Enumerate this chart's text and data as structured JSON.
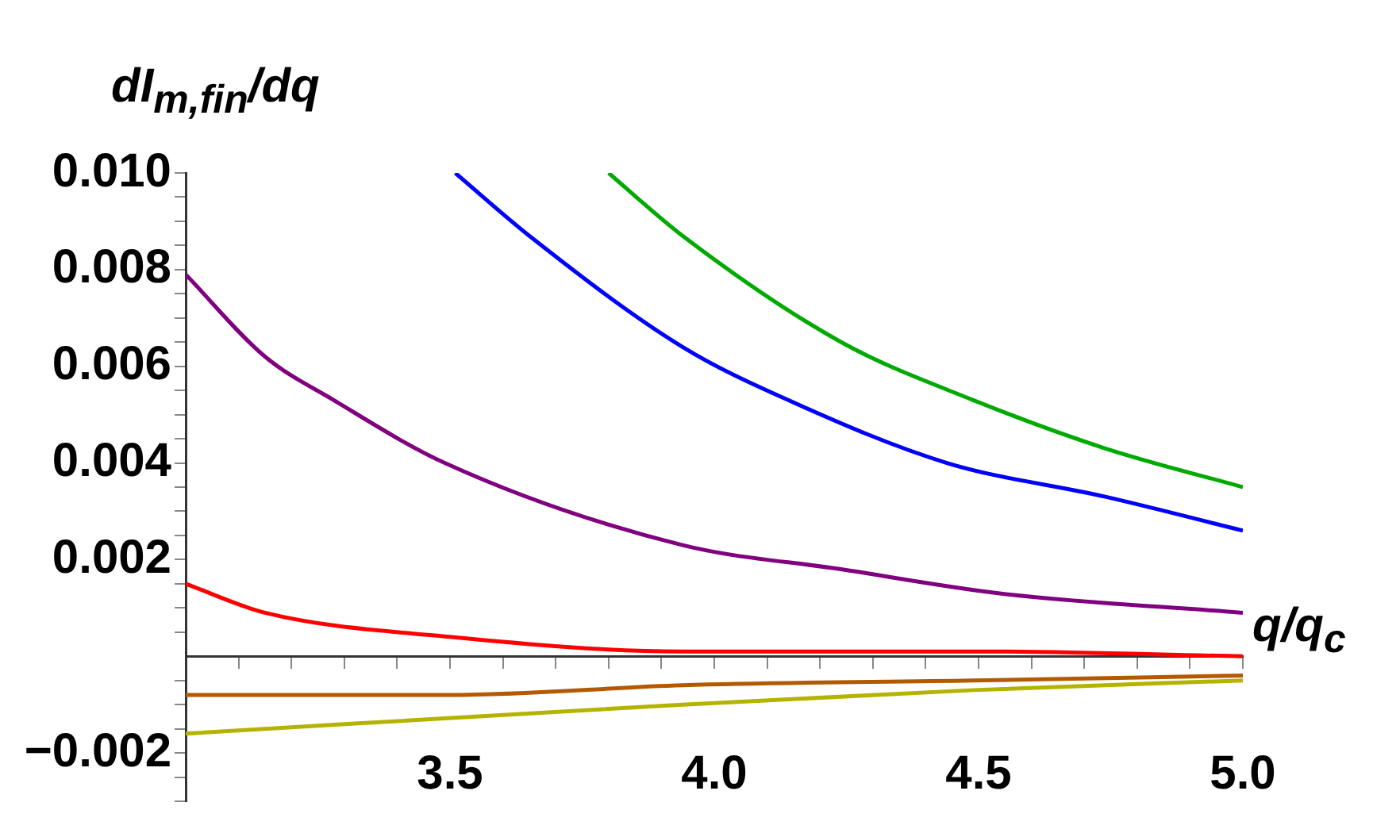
{
  "chart_data": {
    "type": "line",
    "xlabel": "q/q$_{c}$",
    "ylabel": "dI$_{m,fin}$/dq",
    "xlim": [
      3,
      5
    ],
    "ylim": [
      -0.003,
      0.01
    ],
    "xticks": [
      {
        "value": 3,
        "label": null
      },
      {
        "value": 3.1,
        "label": null
      },
      {
        "value": 3.2,
        "label": null
      },
      {
        "value": 3.3,
        "label": null
      },
      {
        "value": 3.4,
        "label": null
      },
      {
        "value": 3.5,
        "label": "3.5"
      },
      {
        "value": 3.6,
        "label": null
      },
      {
        "value": 3.7,
        "label": null
      },
      {
        "value": 3.8,
        "label": null
      },
      {
        "value": 3.9,
        "label": null
      },
      {
        "value": 4,
        "label": "4.0"
      },
      {
        "value": 4.1,
        "label": null
      },
      {
        "value": 4.2,
        "label": null
      },
      {
        "value": 4.3,
        "label": null
      },
      {
        "value": 4.4,
        "label": null
      },
      {
        "value": 4.5,
        "label": "4.5"
      },
      {
        "value": 4.6,
        "label": null
      },
      {
        "value": 4.7,
        "label": null
      },
      {
        "value": 4.8,
        "label": null
      },
      {
        "value": 4.9,
        "label": null
      },
      {
        "value": 5,
        "label": "5.0"
      }
    ],
    "yticks": [
      {
        "value": -0.003,
        "label": null
      },
      {
        "value": -0.0025,
        "label": null
      },
      {
        "value": -0.002,
        "label": "−0.002"
      },
      {
        "value": -0.0015,
        "label": null
      },
      {
        "value": -0.001,
        "label": null
      },
      {
        "value": -0.0005,
        "label": null
      },
      {
        "value": 0.0005,
        "label": null
      },
      {
        "value": 0.001,
        "label": null
      },
      {
        "value": 0.0015,
        "label": null
      },
      {
        "value": 0.002,
        "label": "0.002"
      },
      {
        "value": 0.0025,
        "label": null
      },
      {
        "value": 0.003,
        "label": null
      },
      {
        "value": 0.0035,
        "label": null
      },
      {
        "value": 0.004,
        "label": "0.004"
      },
      {
        "value": 0.0045,
        "label": null
      },
      {
        "value": 0.005,
        "label": null
      },
      {
        "value": 0.0055,
        "label": null
      },
      {
        "value": 0.006,
        "label": "0.006"
      },
      {
        "value": 0.0065,
        "label": null
      },
      {
        "value": 0.007,
        "label": null
      },
      {
        "value": 0.0075,
        "label": null
      },
      {
        "value": 0.008,
        "label": "0.008"
      },
      {
        "value": 0.0085,
        "label": null
      },
      {
        "value": 0.009,
        "label": null
      },
      {
        "value": 0.0095,
        "label": null
      },
      {
        "value": 0.01,
        "label": "0.010"
      }
    ],
    "grid": false,
    "legend": false,
    "marker": "none",
    "line_style": "solid",
    "series": [
      {
        "color": "#00aa00",
        "x": [
          3.8,
          3.94,
          4.24,
          4.49,
          4.74,
          5.0
        ],
        "values": [
          0.01,
          0.0087,
          0.0065,
          0.0053,
          0.0043,
          0.0035
        ]
      },
      {
        "color": "#0000ff",
        "x": [
          3.51,
          3.65,
          3.94,
          4.14,
          4.44,
          4.74,
          5.0
        ],
        "values": [
          0.01,
          0.0087,
          0.0064,
          0.0053,
          0.004,
          0.0033,
          0.0026
        ]
      },
      {
        "color": "#800080",
        "x": [
          3.0,
          3.15,
          3.28,
          3.49,
          3.94,
          4.24,
          4.54,
          5.0
        ],
        "values": [
          0.0079,
          0.0062,
          0.0053,
          0.004,
          0.0023,
          0.0018,
          0.0013,
          0.0009
        ]
      },
      {
        "color": "#ff0000",
        "x": [
          3.0,
          3.15,
          3.5,
          3.94,
          4.5,
          5.0
        ],
        "values": [
          0.0015,
          0.0009,
          0.0004,
          0.0001,
          0.0001,
          0
        ]
      },
      {
        "color": "#b35900",
        "x": [
          3.0,
          3.3,
          3.5,
          3.94,
          4.49,
          5.0
        ],
        "values": [
          -0.0008,
          -0.0008,
          -0.0008,
          -0.0006,
          -0.0005,
          -0.0004
        ]
      },
      {
        "color": "#b3b300",
        "x": [
          3.0,
          3.94,
          4.49,
          5.0
        ],
        "values": [
          -0.0016,
          -0.001,
          -0.0007,
          -0.0005
        ]
      }
    ]
  }
}
